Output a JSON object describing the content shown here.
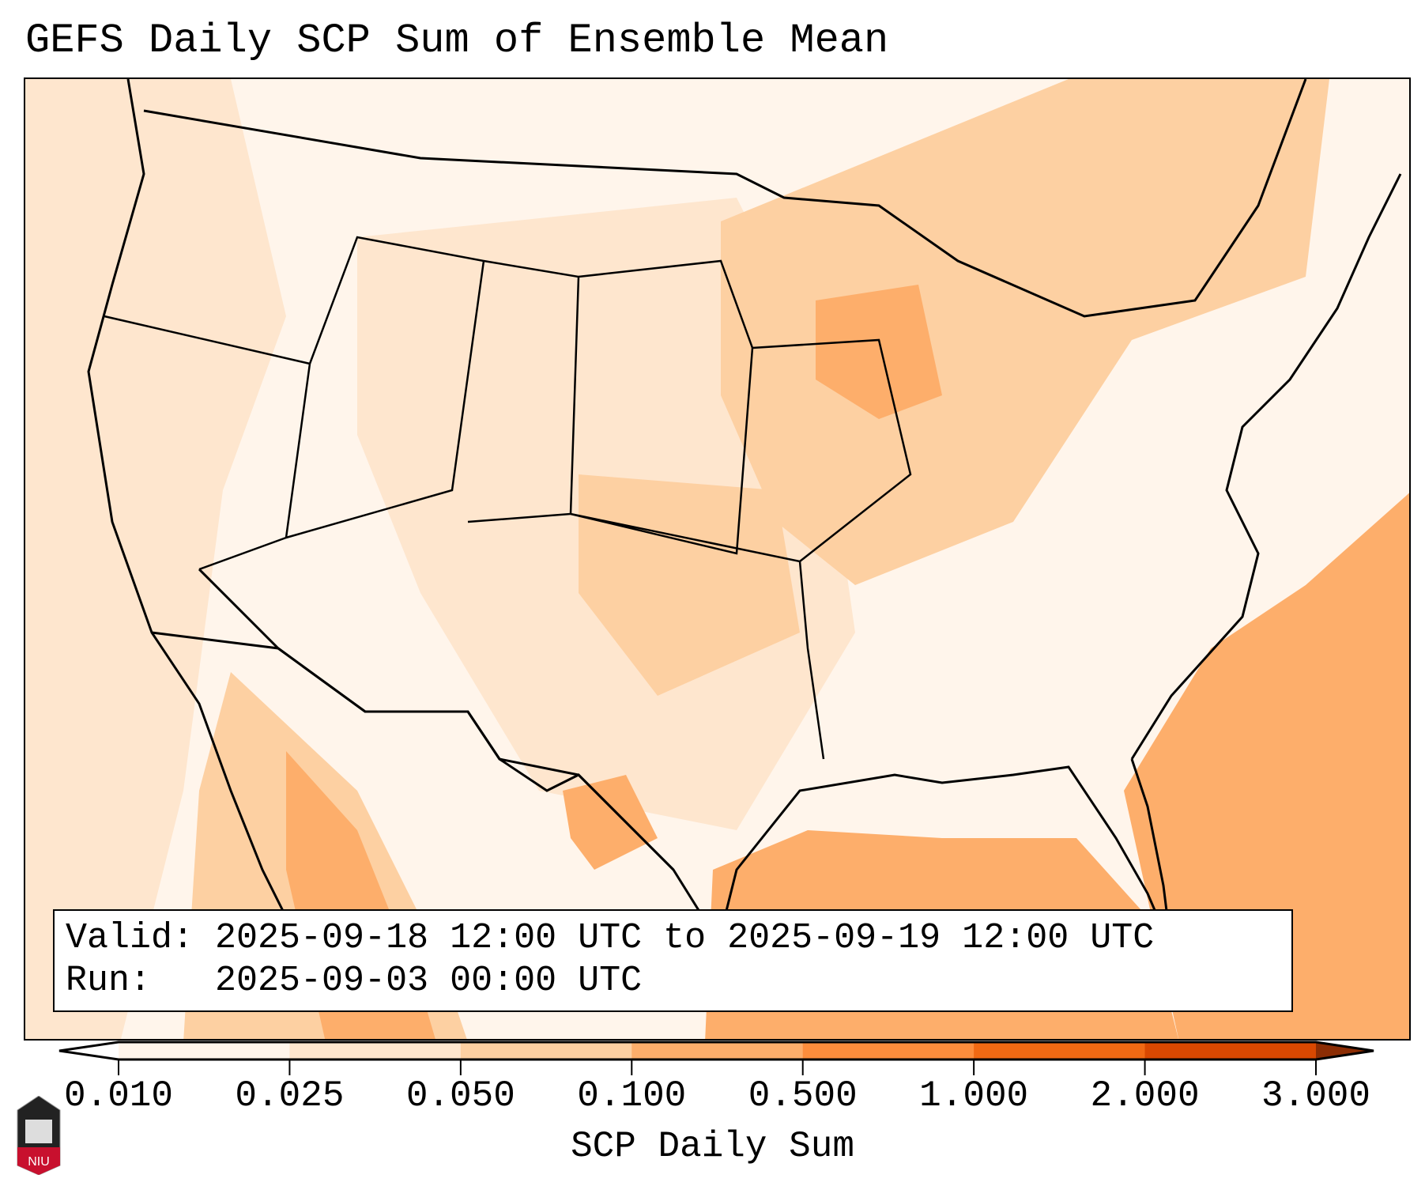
{
  "title": "GEFS Daily SCP Sum of Ensemble Mean",
  "info": {
    "valid_line": "Valid: 2025-09-18 12:00 UTC to 2025-09-19 12:00 UTC",
    "run_line": "Run:   2025-09-03 00:00 UTC"
  },
  "colorbar": {
    "label": "SCP Daily Sum",
    "ticks": [
      "0.010",
      "0.025",
      "0.050",
      "0.100",
      "0.500",
      "1.000",
      "2.000",
      "3.000"
    ],
    "colors": [
      "#fff5eb",
      "#fee6ce",
      "#fdd0a2",
      "#fdae6b",
      "#fd8d3c",
      "#f16913",
      "#d94801",
      "#8c2d04"
    ],
    "under_color": "#ffffff",
    "over_color": "#8c2d04"
  },
  "logo": {
    "text": "NIU"
  }
}
